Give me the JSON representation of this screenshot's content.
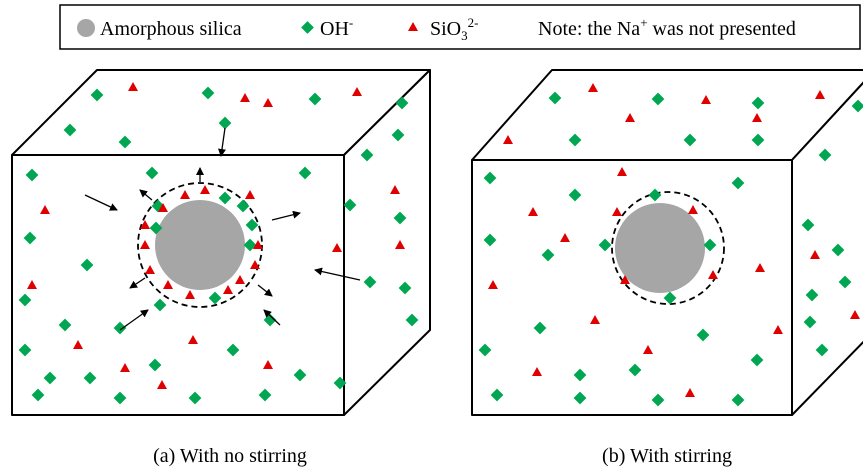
{
  "legend": [
    {
      "label": "Amorphous silica"
    },
    {
      "label": "OH",
      "sup": "-"
    },
    {
      "label": "SiO",
      "sub": "3",
      "sup": "2-"
    }
  ],
  "note": {
    "text": "Note: the Na",
    "sup": "+",
    "rest": " was not presented"
  },
  "captions": [
    "(a) With no stirring",
    "(b) With stirring"
  ]
}
